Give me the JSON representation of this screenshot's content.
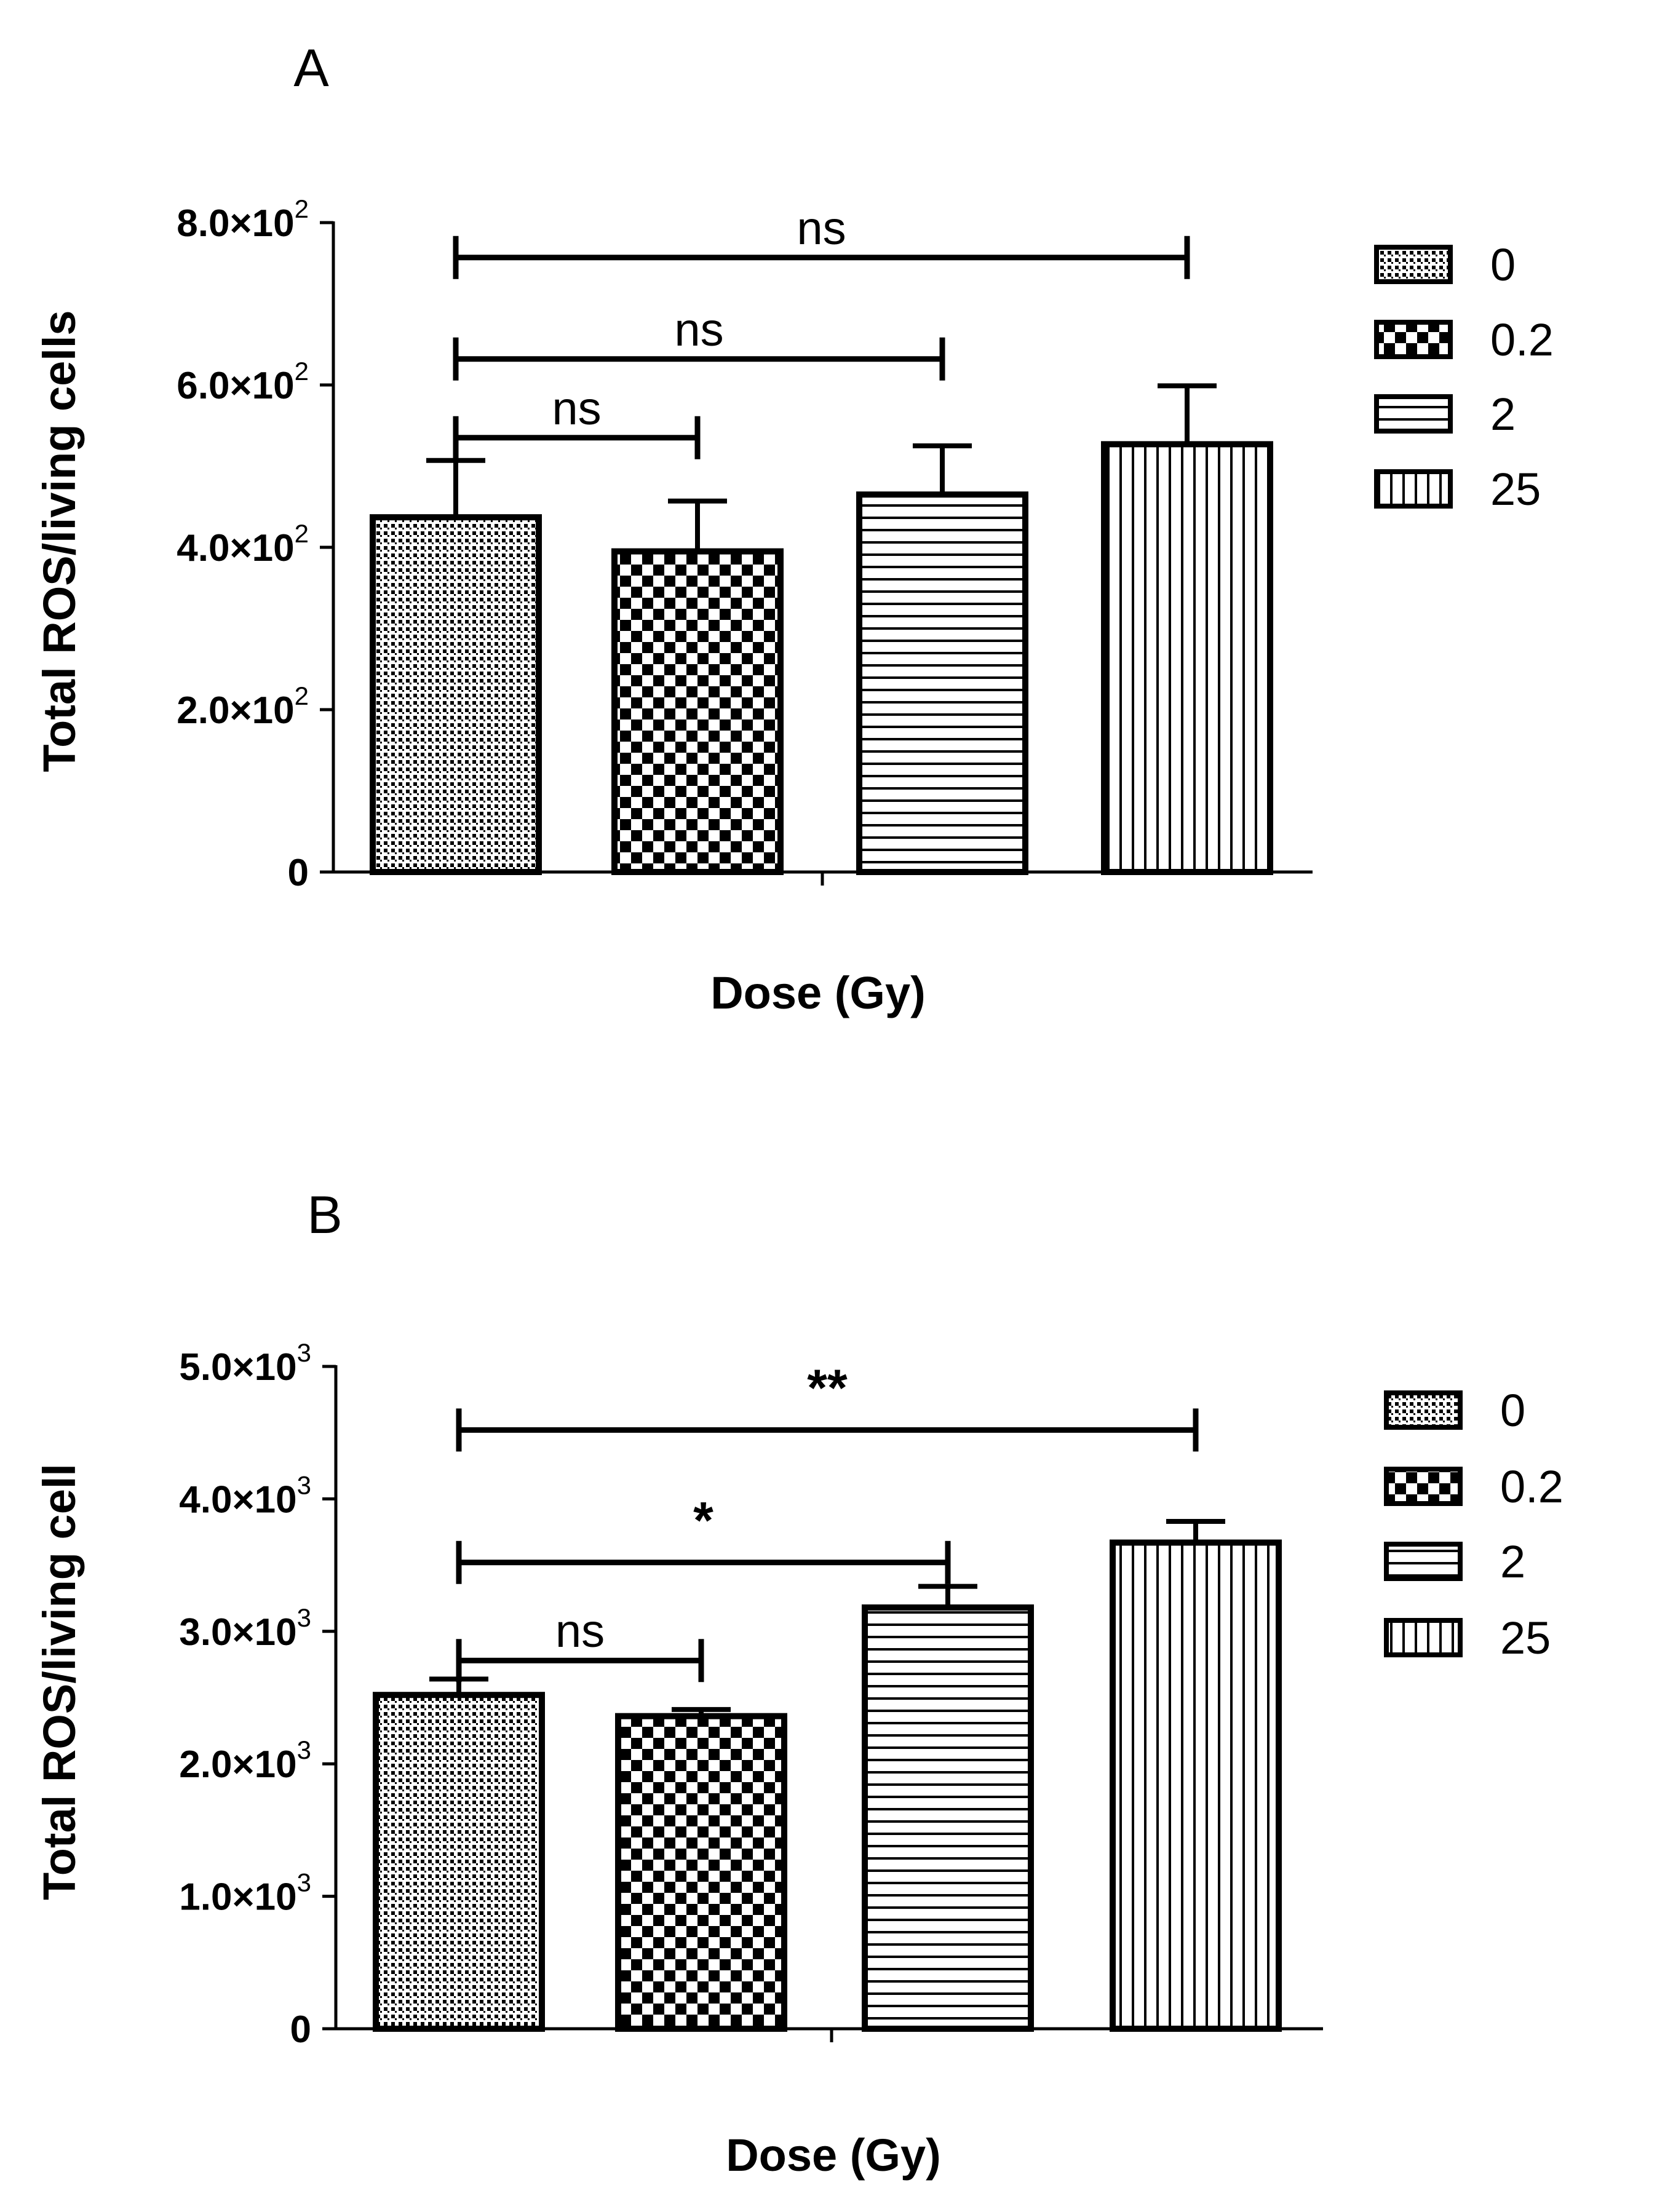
{
  "colors": {
    "ink": "#000000",
    "background": "#ffffff"
  },
  "chart_data": [
    {
      "type": "bar",
      "panel_label": "A",
      "title": "",
      "xlabel": "Dose (Gy)",
      "ylabel": "Total ROS/living cells",
      "ylim": [
        0,
        800
      ],
      "yticks": [
        0,
        200,
        400,
        600,
        800
      ],
      "ytick_labels": [
        {
          "base": "0",
          "exp": ""
        },
        {
          "base": "2.0×10",
          "exp": "2"
        },
        {
          "base": "4.0×10",
          "exp": "2"
        },
        {
          "base": "6.0×10",
          "exp": "2"
        },
        {
          "base": "8.0×10",
          "exp": "2"
        }
      ],
      "categories": [
        "0",
        "0.2",
        "2",
        "25"
      ],
      "values": [
        437,
        395,
        465,
        527
      ],
      "errors": [
        70,
        62,
        60,
        72
      ],
      "patterns": [
        "dots",
        "checker",
        "hlines",
        "vlines"
      ],
      "legend": {
        "position": "top-right",
        "entries": [
          "0",
          "0.2",
          "2",
          "25"
        ]
      },
      "annotations": [
        {
          "from": 0,
          "to": 3,
          "y": 757,
          "label": "ns"
        },
        {
          "from": 0,
          "to": 2,
          "y": 632,
          "label": "ns"
        },
        {
          "from": 0,
          "to": 1,
          "y": 535,
          "label": "ns"
        }
      ]
    },
    {
      "type": "bar",
      "panel_label": "B",
      "title": "",
      "xlabel": "Dose (Gy)",
      "ylabel": "Total ROS/living cell",
      "ylim": [
        0,
        5000
      ],
      "yticks": [
        0,
        1000,
        2000,
        3000,
        4000,
        5000
      ],
      "ytick_labels": [
        {
          "base": "0",
          "exp": ""
        },
        {
          "base": "1.0×10",
          "exp": "3"
        },
        {
          "base": "2.0×10",
          "exp": "3"
        },
        {
          "base": "3.0×10",
          "exp": "3"
        },
        {
          "base": "4.0×10",
          "exp": "3"
        },
        {
          "base": "5.0×10",
          "exp": "3"
        }
      ],
      "categories": [
        "0",
        "0.2",
        "2",
        "25"
      ],
      "values": [
        2520,
        2360,
        3180,
        3670
      ],
      "errors": [
        120,
        50,
        160,
        160
      ],
      "patterns": [
        "dots",
        "checker",
        "hlines",
        "vlines"
      ],
      "legend": {
        "position": "top-right",
        "entries": [
          "0",
          "0.2",
          "2",
          "25"
        ]
      },
      "annotations": [
        {
          "from": 0,
          "to": 3,
          "y": 4520,
          "label": "**"
        },
        {
          "from": 0,
          "to": 2,
          "y": 3520,
          "label": "*"
        },
        {
          "from": 0,
          "to": 1,
          "y": 2780,
          "label": "ns"
        }
      ]
    }
  ]
}
